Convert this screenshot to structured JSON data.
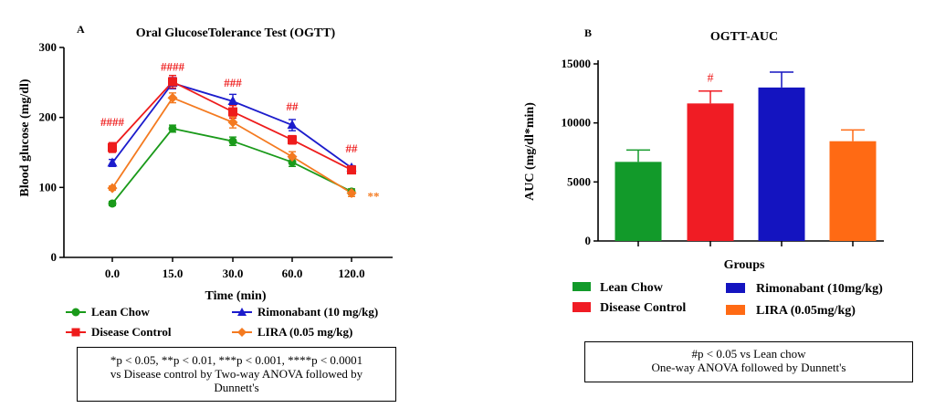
{
  "panelA": {
    "letter": "A",
    "legend": [
      {
        "name": "Lean Chow",
        "color": "#1a9a1a",
        "marker": "circle"
      },
      {
        "name": "Rimonabant (10 mg/kg)",
        "color": "#1c1ccc",
        "marker": "triangle"
      },
      {
        "name": "Disease Control",
        "color": "#ee1c1c",
        "marker": "square"
      },
      {
        "name": "LIRA (0.05 mg/kg)",
        "color": "#f47a20",
        "marker": "diamond"
      }
    ],
    "note": {
      "line1": "*p < 0.05, **p < 0.01, ***p < 0.001, ****p < 0.0001",
      "line2": "vs Disease control by Two-way ANOVA followed by",
      "line3": "Dunnett's"
    }
  },
  "panelB": {
    "letter": "B",
    "legend": [
      {
        "name": "Lean Chow",
        "color": "#129a2a"
      },
      {
        "name": "Rimonabant (10mg/kg)",
        "color": "#1414c0"
      },
      {
        "name": "Disease Control",
        "color": "#f01c24"
      },
      {
        "name": "LIRA (0.05mg/kg)",
        "color": "#ff6a14"
      }
    ],
    "note": {
      "line1": "#p < 0.05 vs Lean chow",
      "line2": "One-way ANOVA followed by Dunnett's"
    }
  },
  "chart_data": [
    {
      "type": "line",
      "title": "Oral GlucoseTolerance Test (OGTT)",
      "xlabel": "Time (min)",
      "ylabel": "Blood glucose (mg/dl)",
      "x": [
        "0.0",
        "15.0",
        "30.0",
        "60.0",
        "120.0"
      ],
      "ylim": [
        0,
        300
      ],
      "yticks": [
        "0",
        "100",
        "200",
        "300"
      ],
      "grid": false,
      "series": [
        {
          "name": "Lean Chow",
          "color": "#1a9a1a",
          "marker": "circle",
          "values": [
            77,
            184,
            166,
            136,
            94
          ],
          "errors": [
            3,
            5,
            6,
            6,
            4
          ]
        },
        {
          "name": "Rimonabant (10 mg/kg)",
          "color": "#1c1ccc",
          "marker": "triangle",
          "values": [
            135,
            249,
            223,
            189,
            128
          ],
          "errors": [
            5,
            8,
            10,
            8,
            3
          ]
        },
        {
          "name": "Disease Control",
          "color": "#ee1c1c",
          "marker": "square",
          "values": [
            157,
            251,
            208,
            168,
            125
          ],
          "errors": [
            7,
            9,
            9,
            6,
            3
          ]
        },
        {
          "name": "LIRA (0.05 mg/kg)",
          "color": "#f47a20",
          "marker": "diamond",
          "values": [
            99,
            228,
            193,
            144,
            92
          ],
          "errors": [
            3,
            7,
            8,
            7,
            5
          ]
        }
      ],
      "annotations": [
        {
          "text": "####",
          "x": "0.0",
          "y": 193,
          "color": "#ee1c1c"
        },
        {
          "text": "####",
          "x": "15.0",
          "y": 272,
          "color": "#ee1c1c"
        },
        {
          "text": "###",
          "x": "30.0",
          "y": 249,
          "color": "#ee1c1c"
        },
        {
          "text": "##",
          "x": "60.0",
          "y": 215,
          "color": "#ee1c1c"
        },
        {
          "text": "##",
          "x": "120.0",
          "y": 155,
          "color": "#ee1c1c"
        },
        {
          "text": "**",
          "x": "120.0",
          "y": 87,
          "color": "#f47a20"
        }
      ]
    },
    {
      "type": "bar",
      "title": "OGTT-AUC",
      "xlabel": "Groups",
      "ylabel": "AUC (mg/dl*min)",
      "ylim": [
        0,
        15000
      ],
      "yticks": [
        "0",
        "5000",
        "10000",
        "15000"
      ],
      "grid": false,
      "categories": [
        "Lean Chow",
        "Disease Control",
        "Rimonabant (10mg/kg)",
        "LIRA (0.05mg/kg)"
      ],
      "values": [
        6700,
        11650,
        13000,
        8450
      ],
      "errors": [
        1000,
        1050,
        1300,
        950
      ],
      "colors": [
        "#129a2a",
        "#f01c24",
        "#1414c0",
        "#ff6a14"
      ],
      "annotations": [
        {
          "text": "#",
          "category": "Disease Control",
          "color": "#ee1c1c"
        }
      ]
    }
  ]
}
